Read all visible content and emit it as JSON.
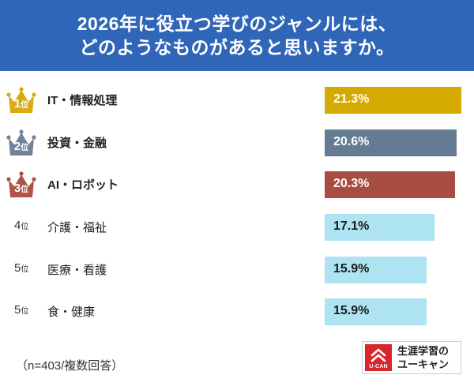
{
  "header": {
    "line1": "2026年に役立つ学びのジャンルには、",
    "line2": "どのようなものがあると思いますか。"
  },
  "rank_suffix": "位",
  "chart_data": {
    "type": "bar",
    "orientation": "horizontal",
    "title": "2026年に役立つ学びのジャンルには、どのようなものがあると思いますか。",
    "xlim": [
      0,
      21.3
    ],
    "unit": "%",
    "items": [
      {
        "rank": "1",
        "label": "IT・情報処理",
        "value": 21.3,
        "value_label": "21.3%",
        "color": "#d4a900",
        "text_color": "#ffffff",
        "badge_color": "#d8ac10",
        "top": true
      },
      {
        "rank": "2",
        "label": "投資・金融",
        "value": 20.6,
        "value_label": "20.6%",
        "color": "#657b93",
        "text_color": "#ffffff",
        "badge_color": "#6f8399",
        "top": true
      },
      {
        "rank": "3",
        "label": "AI・ロボット",
        "value": 20.3,
        "value_label": "20.3%",
        "color": "#a94d42",
        "text_color": "#ffffff",
        "badge_color": "#b05345",
        "top": true
      },
      {
        "rank": "4",
        "label": "介護・福祉",
        "value": 17.1,
        "value_label": "17.1%",
        "color": "#aee3f1",
        "text_color": "#1a1a1a",
        "top": false
      },
      {
        "rank": "5",
        "label": "医療・看護",
        "value": 15.9,
        "value_label": "15.9%",
        "color": "#aee3f1",
        "text_color": "#1a1a1a",
        "top": false
      },
      {
        "rank": "5",
        "label": "食・健康",
        "value": 15.9,
        "value_label": "15.9%",
        "color": "#aee3f1",
        "text_color": "#1a1a1a",
        "top": false
      }
    ]
  },
  "footnote": "（n=403/複数回答）",
  "logo": {
    "line1": "生涯学習の",
    "line2": "ユーキャン",
    "mark_text": "U-CAN"
  }
}
